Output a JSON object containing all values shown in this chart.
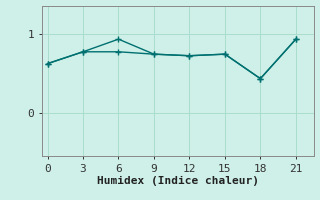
{
  "xlabel": "Humidex (Indice chaleur)",
  "background_color": "#cef0e8",
  "line_color": "#007070",
  "grid_color": "#aaddcc",
  "spine_color": "#888888",
  "xticks": [
    0,
    3,
    6,
    9,
    12,
    15,
    18,
    21
  ],
  "yticks": [
    0,
    1
  ],
  "xlim": [
    -0.5,
    22.5
  ],
  "ylim": [
    -0.55,
    1.35
  ],
  "line1_x": [
    0,
    3,
    6,
    9,
    12,
    15,
    18,
    21
  ],
  "line1_y": [
    0.62,
    0.77,
    0.77,
    0.74,
    0.72,
    0.74,
    0.43,
    0.93
  ],
  "line2_x": [
    0,
    3,
    6,
    9,
    12,
    15,
    18,
    21
  ],
  "line2_y": [
    0.62,
    0.77,
    0.93,
    0.74,
    0.72,
    0.74,
    0.43,
    0.93
  ],
  "tick_fontsize": 8,
  "xlabel_fontsize": 8
}
